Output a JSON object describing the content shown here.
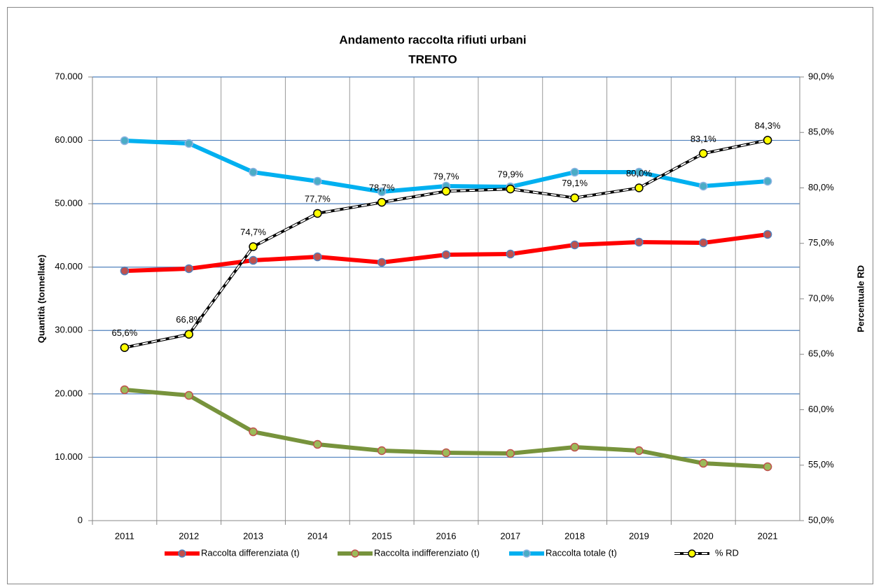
{
  "chart_data": {
    "type": "line",
    "title": "Andamento raccolta rifiuti urbani",
    "subtitle": "TRENTO",
    "y_label": "Quantità (tonnellate)",
    "y2_label": "Percentuale RD",
    "categories": [
      "2011",
      "2012",
      "2013",
      "2014",
      "2015",
      "2016",
      "2017",
      "2018",
      "2019",
      "2020",
      "2021"
    ],
    "series": [
      {
        "name": "Raccolta differenziata (t)",
        "color": "#ff0000",
        "marker_color": "#c0504d",
        "marker_stroke": "#4f81bd",
        "values": [
          39400,
          39750,
          41070,
          41620,
          40740,
          41950,
          42060,
          43500,
          43940,
          43830,
          45160
        ]
      },
      {
        "name": "Raccolta indifferenziato (t)",
        "color": "#77933c",
        "marker_color": "#9bbb59",
        "marker_stroke": "#c0504d",
        "values": [
          20650,
          19760,
          14020,
          12030,
          11040,
          10710,
          10600,
          11590,
          11040,
          9050,
          8500
        ]
      },
      {
        "name": "Raccolta totale (t)",
        "color": "#00b0f0",
        "marker_color": "#4bacc6",
        "marker_stroke": "#8db3e2",
        "values": [
          59950,
          59510,
          54980,
          53550,
          51890,
          52780,
          52670,
          54980,
          54980,
          52780,
          53550
        ]
      },
      {
        "name": "% RD",
        "color": "#000000",
        "marker_color": "#ffff00",
        "marker_stroke": "#000000",
        "dashed": true,
        "axis": "y2",
        "values": [
          65.6,
          66.8,
          74.7,
          77.7,
          78.7,
          79.7,
          79.9,
          79.1,
          80.0,
          83.1,
          84.3
        ],
        "value_labels": [
          "65,6%",
          "66,8%",
          "74,7%",
          "77,7%",
          "78,7%",
          "79,7%",
          "79,9%",
          "79,1%",
          "80,0%",
          "83,1%",
          "84,3%"
        ]
      }
    ],
    "ylim": [
      0,
      70000
    ],
    "yticks": [
      0,
      {
        "value": 10000,
        "label": "10.000"
      },
      {
        "value": 20000,
        "label": "20.000"
      },
      {
        "value": 30000,
        "label": "30.000"
      },
      {
        "value": 40000,
        "label": "40.000"
      },
      {
        "value": 50000,
        "label": "50.000"
      },
      {
        "value": 60000,
        "label": "60.000"
      },
      {
        "value": 70000,
        "label": "70.000"
      }
    ],
    "y2lim": [
      50,
      90
    ],
    "y2ticks": [
      {
        "value": 50,
        "label": "50,0%"
      },
      {
        "value": 55,
        "label": "55,0%"
      },
      {
        "value": 60,
        "label": "60,0%"
      },
      {
        "value": 65,
        "label": "65,0%"
      },
      {
        "value": 70,
        "label": "70,0%"
      },
      {
        "value": 75,
        "label": "75,0%"
      },
      {
        "value": 80,
        "label": "80,0%"
      },
      {
        "value": 85,
        "label": "85,0%"
      },
      {
        "value": 90,
        "label": "90,0%"
      }
    ],
    "grid": true,
    "legend": "bottom"
  }
}
